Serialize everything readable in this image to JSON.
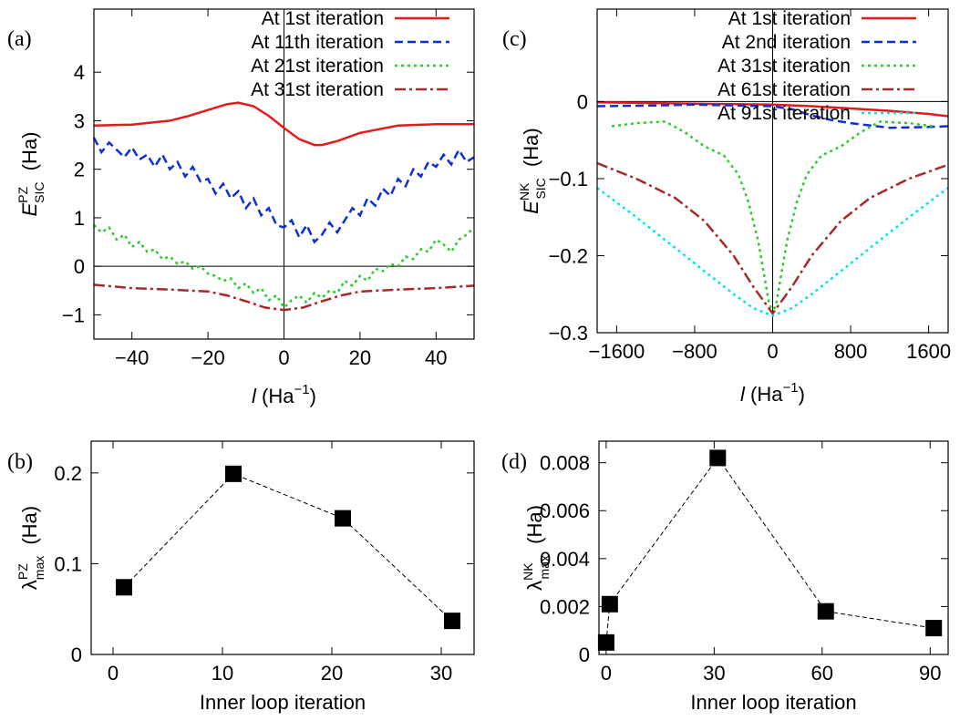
{
  "chart_data": [
    {
      "panel": "(a)",
      "type": "line",
      "xlabel_var": "l",
      "xlabel_unit": "(Ha",
      "xlabel_exp": "−1",
      "xlabel_close": ")",
      "ylabel_var": "E",
      "ylabel_sup": "PZ",
      "ylabel_sub": "SIC",
      "ylabel_unit": "(Ha)",
      "xlim": [
        -50,
        50
      ],
      "ylim": [
        -1.5,
        5.3
      ],
      "xticks": [
        -40,
        -20,
        0,
        20,
        40
      ],
      "xtick_labels": [
        "−40",
        "−20",
        "0",
        "20",
        "40"
      ],
      "yticks": [
        -1,
        0,
        1,
        2,
        3,
        4
      ],
      "ytick_labels": [
        "−1",
        "0",
        "1",
        "2",
        "3",
        "4"
      ],
      "zero_lines": true,
      "legend_position": "top-right",
      "series": [
        {
          "name": "At 1st iteration",
          "color": "#e41a1c",
          "dash": "solid",
          "x": [
            -50,
            -40,
            -30,
            -25,
            -20,
            -15,
            -12,
            -8,
            -4,
            0,
            4,
            8,
            10,
            14,
            20,
            30,
            40,
            50
          ],
          "y": [
            2.9,
            2.92,
            3.0,
            3.1,
            3.22,
            3.34,
            3.37,
            3.3,
            3.1,
            2.85,
            2.62,
            2.5,
            2.5,
            2.58,
            2.75,
            2.9,
            2.93,
            2.93
          ]
        },
        {
          "name": "At 11th iteration",
          "color": "#0c2fd6",
          "dash": "dashed",
          "x": [
            -50,
            -48,
            -46,
            -44,
            -42,
            -40,
            -38,
            -36,
            -34,
            -32,
            -30,
            -28,
            -26,
            -24,
            -22,
            -20,
            -18,
            -16,
            -14,
            -12,
            -10,
            -8,
            -6,
            -4,
            -2,
            0,
            2,
            4,
            6,
            8,
            10,
            12,
            14,
            16,
            18,
            20,
            22,
            24,
            26,
            28,
            30,
            32,
            34,
            36,
            38,
            40,
            42,
            44,
            46,
            48,
            50
          ],
          "y": [
            2.65,
            2.35,
            2.55,
            2.4,
            2.25,
            2.45,
            2.2,
            2.3,
            2.05,
            2.3,
            2.0,
            2.15,
            1.85,
            2.05,
            1.75,
            1.8,
            1.5,
            1.7,
            1.4,
            1.55,
            1.2,
            1.4,
            1.05,
            1.2,
            0.85,
            0.8,
            0.95,
            0.6,
            0.85,
            0.5,
            0.65,
            0.9,
            0.7,
            0.95,
            1.2,
            1.05,
            1.4,
            1.25,
            1.6,
            1.45,
            1.8,
            1.65,
            2.0,
            1.85,
            2.15,
            2.05,
            2.3,
            2.1,
            2.4,
            2.15,
            2.25
          ]
        },
        {
          "name": "At 21st iteration",
          "color": "#2ccc2c",
          "dash": "dotted",
          "x": [
            -50,
            -48,
            -46,
            -44,
            -42,
            -40,
            -38,
            -36,
            -34,
            -32,
            -30,
            -28,
            -26,
            -24,
            -22,
            -20,
            -18,
            -16,
            -14,
            -12,
            -10,
            -8,
            -6,
            -4,
            -2,
            0,
            2,
            4,
            6,
            8,
            10,
            12,
            14,
            16,
            18,
            20,
            22,
            24,
            26,
            28,
            30,
            32,
            34,
            36,
            38,
            40,
            42,
            44,
            46,
            48,
            50
          ],
          "y": [
            0.85,
            0.7,
            0.8,
            0.55,
            0.65,
            0.4,
            0.5,
            0.3,
            0.35,
            0.15,
            0.2,
            0.05,
            0.1,
            -0.05,
            0.0,
            -0.15,
            -0.2,
            -0.3,
            -0.25,
            -0.45,
            -0.35,
            -0.55,
            -0.45,
            -0.7,
            -0.6,
            -0.85,
            -0.7,
            -0.6,
            -0.75,
            -0.55,
            -0.65,
            -0.5,
            -0.55,
            -0.3,
            -0.4,
            -0.2,
            -0.3,
            -0.05,
            -0.1,
            0.05,
            0.0,
            0.2,
            0.15,
            0.35,
            0.3,
            0.55,
            0.45,
            0.3,
            0.55,
            0.65,
            0.8
          ]
        },
        {
          "name": "At 31st iteration",
          "color": "#a52a2a",
          "dash": "dashdot",
          "x": [
            -50,
            -40,
            -30,
            -20,
            -15,
            -10,
            -5,
            0,
            5,
            10,
            15,
            20,
            30,
            40,
            50
          ],
          "y": [
            -0.38,
            -0.45,
            -0.48,
            -0.52,
            -0.6,
            -0.72,
            -0.85,
            -0.9,
            -0.85,
            -0.72,
            -0.6,
            -0.52,
            -0.48,
            -0.45,
            -0.4
          ]
        }
      ]
    },
    {
      "panel": "(c)",
      "type": "line",
      "xlabel_var": "l",
      "xlabel_unit": "(Ha",
      "xlabel_exp": "−1",
      "xlabel_close": ")",
      "ylabel_var": "E",
      "ylabel_sup": "NK",
      "ylabel_sub": "SIC",
      "ylabel_unit": "(Ha)",
      "xlim": [
        -1800,
        1800
      ],
      "ylim": [
        -0.3,
        0.12
      ],
      "xticks": [
        -1600,
        -800,
        0,
        800,
        1600
      ],
      "xtick_labels": [
        "−1600",
        "−800",
        "0",
        "800",
        "1600"
      ],
      "yticks": [
        -0.3,
        -0.2,
        -0.1,
        0
      ],
      "ytick_labels": [
        "−0.3",
        "−0.2",
        "−0.1",
        "0"
      ],
      "zero_lines": true,
      "legend_position": "top-right",
      "series": [
        {
          "name": "At 1st iteration",
          "color": "#e41a1c",
          "dash": "solid",
          "x": [
            -1800,
            -1200,
            -600,
            0,
            400,
            800,
            1200,
            1600,
            1800
          ],
          "y": [
            -0.001,
            -0.002,
            -0.003,
            -0.004,
            -0.006,
            -0.009,
            -0.012,
            -0.016,
            -0.019
          ]
        },
        {
          "name": "At 2nd iteration",
          "color": "#0c2fd6",
          "dash": "dashed",
          "x": [
            -1800,
            -1200,
            -800,
            -400,
            0,
            200,
            400,
            600,
            800,
            1000,
            1200,
            1600,
            1800
          ],
          "y": [
            -0.006,
            -0.005,
            -0.004,
            -0.005,
            -0.006,
            -0.01,
            -0.018,
            -0.024,
            -0.028,
            -0.031,
            -0.034,
            -0.033,
            -0.032
          ]
        },
        {
          "name": "At 31st iteration",
          "color": "#2ccc2c",
          "dash": "dotted",
          "x": [
            -1650,
            -1400,
            -1100,
            -900,
            -700,
            -500,
            -350,
            -250,
            -150,
            -80,
            -40,
            0,
            40,
            80,
            150,
            250,
            350,
            500,
            700,
            900,
            1100,
            1400,
            1650
          ],
          "y": [
            -0.032,
            -0.028,
            -0.026,
            -0.04,
            -0.058,
            -0.07,
            -0.095,
            -0.13,
            -0.18,
            -0.23,
            -0.26,
            -0.275,
            -0.26,
            -0.23,
            -0.18,
            -0.13,
            -0.095,
            -0.07,
            -0.058,
            -0.04,
            -0.026,
            -0.028,
            -0.032
          ]
        },
        {
          "name": "At 61st iteration",
          "color": "#a52a2a",
          "dash": "dashdot",
          "x": [
            -1800,
            -1400,
            -1000,
            -700,
            -400,
            -200,
            0,
            200,
            400,
            700,
            1000,
            1400,
            1800
          ],
          "y": [
            -0.08,
            -0.1,
            -0.125,
            -0.155,
            -0.2,
            -0.24,
            -0.275,
            -0.24,
            -0.2,
            -0.155,
            -0.125,
            -0.1,
            -0.082
          ]
        },
        {
          "name": "At 91st iteration",
          "color": "#00e5ee",
          "dash": "dotted",
          "x": [
            -1800,
            -1400,
            -1000,
            -700,
            -400,
            -200,
            0,
            200,
            400,
            700,
            1000,
            1400,
            1800
          ],
          "y": [
            -0.112,
            -0.15,
            -0.19,
            -0.22,
            -0.25,
            -0.268,
            -0.278,
            -0.268,
            -0.25,
            -0.22,
            -0.19,
            -0.15,
            -0.112
          ]
        }
      ]
    },
    {
      "panel": "(b)",
      "type": "scatter",
      "xlabel": "Inner loop iteration",
      "ylabel_sym": "λ",
      "ylabel_sup": "PZ",
      "ylabel_sub": "max",
      "ylabel_unit": "(Ha)",
      "xlim": [
        -2,
        33
      ],
      "ylim": [
        0,
        0.235
      ],
      "xticks": [
        0,
        10,
        20,
        30
      ],
      "xtick_labels": [
        "0",
        "10",
        "20",
        "30"
      ],
      "yticks": [
        0,
        0.1,
        0.2
      ],
      "ytick_labels": [
        "0",
        "0.1",
        "0.2"
      ],
      "series": [
        {
          "color": "#000000",
          "x": [
            1,
            11,
            21,
            31
          ],
          "y": [
            0.074,
            0.199,
            0.15,
            0.037
          ]
        }
      ]
    },
    {
      "panel": "(d)",
      "type": "scatter",
      "xlabel": "Inner loop iteration",
      "ylabel_sym": "λ",
      "ylabel_sup": "NK",
      "ylabel_sub": "max",
      "ylabel_unit": "(Ha)",
      "xlim": [
        -2,
        95
      ],
      "ylim": [
        0,
        0.0089
      ],
      "xticks": [
        0,
        30,
        60,
        90
      ],
      "xtick_labels": [
        "0",
        "30",
        "60",
        "90"
      ],
      "yticks": [
        0,
        0.002,
        0.004,
        0.006,
        0.008
      ],
      "ytick_labels": [
        "0",
        "0.002",
        "0.004",
        "0.006",
        "0.008"
      ],
      "series": [
        {
          "color": "#000000",
          "x": [
            0,
            1,
            31,
            61,
            91
          ],
          "y": [
            0.0005,
            0.0021,
            0.0082,
            0.0018,
            0.0011
          ]
        }
      ]
    }
  ]
}
